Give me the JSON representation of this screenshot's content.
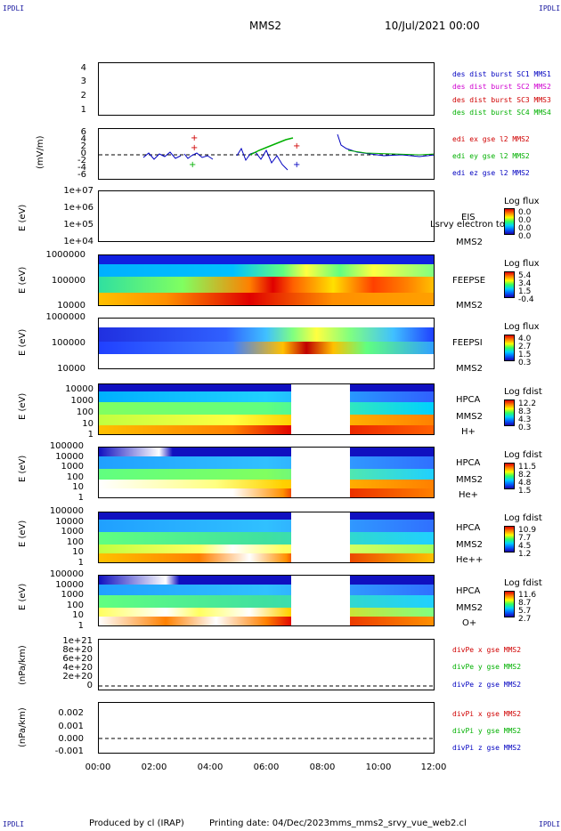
{
  "corners": {
    "tl": "IPDLI",
    "tr": "IPDLI",
    "bl": "IPDLI",
    "br": "IPDLI"
  },
  "header": {
    "mission": "MMS2",
    "date": "10/Jul/2021 00:00"
  },
  "panels": {
    "p1": {
      "ticks": [
        "4",
        "3",
        "2",
        "1"
      ],
      "legend": [
        "des dist burst SC1 MMS1",
        "des dist burst SC2 MMS2",
        "des dist burst SC3 MMS3",
        "des dist burst SC4 MMS4"
      ],
      "legend_colors": [
        "#0000c0",
        "#d000d0",
        "#d00000",
        "#00b000"
      ]
    },
    "p2": {
      "ylabel": "(mV/m)",
      "ticks": [
        "6",
        "4",
        "2",
        "0",
        "-2",
        "-4",
        "-6"
      ],
      "legend": [
        "edi ex gse l2 MMS2",
        "edi ey gse l2 MMS2",
        "edi ez gse l2 MMS2"
      ],
      "legend_colors": [
        "#d00000",
        "#00b000",
        "#0000c0"
      ]
    },
    "p3": {
      "ylabel": "E (eV)",
      "ticks": [
        "1e+07",
        "1e+06",
        "1e+05",
        "1e+04"
      ],
      "side": [
        "EIS",
        "MMS2"
      ],
      "overlap": "Lsrvy electron to",
      "cb_title": "Log flux",
      "cb_vals": [
        "0.0",
        "0.0",
        "0.0",
        "0.0"
      ]
    },
    "p4": {
      "ylabel": "E (eV)",
      "ticks": [
        "1000000",
        "100000",
        "10000"
      ],
      "side": [
        "FEEPSE",
        "MMS2"
      ],
      "cb_title": "Log flux",
      "cb_vals": [
        "5.4",
        "3.4",
        "1.5",
        "-0.4"
      ]
    },
    "p5": {
      "ylabel": "E (eV)",
      "ticks": [
        "1000000",
        "100000",
        "10000"
      ],
      "side": [
        "FEEPSI",
        "MMS2"
      ],
      "cb_title": "Log flux",
      "cb_vals": [
        "4.0",
        "2.7",
        "1.5",
        "0.3"
      ]
    },
    "p6": {
      "ylabel": "E (eV)",
      "ticks": [
        "10000",
        "1000",
        "100",
        "10",
        "1"
      ],
      "side": [
        "HPCA",
        "MMS2",
        "H+"
      ],
      "cb_title": "Log fdist",
      "cb_vals": [
        "12.2",
        "8.3",
        "4.3",
        "0.3"
      ]
    },
    "p7": {
      "ylabel": "E (eV)",
      "ticks": [
        "100000",
        "10000",
        "1000",
        "100",
        "10",
        "1"
      ],
      "side": [
        "HPCA",
        "MMS2",
        "He+"
      ],
      "cb_title": "Log fdist",
      "cb_vals": [
        "11.5",
        "8.2",
        "4.8",
        "1.5"
      ]
    },
    "p8": {
      "ylabel": "E (eV)",
      "ticks": [
        "100000",
        "10000",
        "1000",
        "100",
        "10",
        "1"
      ],
      "side": [
        "HPCA",
        "MMS2",
        "He++"
      ],
      "cb_title": "Log fdist",
      "cb_vals": [
        "10.9",
        "7.7",
        "4.5",
        "1.2"
      ]
    },
    "p9": {
      "ylabel": "E (eV)",
      "ticks": [
        "100000",
        "10000",
        "1000",
        "100",
        "10",
        "1"
      ],
      "side": [
        "HPCA",
        "MMS2",
        "O+"
      ],
      "cb_title": "Log fdist",
      "cb_vals": [
        "11.6",
        "8.7",
        "5.7",
        "2.7"
      ]
    },
    "p10": {
      "ylabel": "(nPa/km)",
      "ticks": [
        "1e+21",
        "8e+20",
        "6e+20",
        "4e+20",
        "2e+20",
        "0"
      ],
      "legend": [
        "divPe x gse MMS2",
        "divPe y gse MMS2",
        "divPe z gse MMS2"
      ],
      "legend_colors": [
        "#d00000",
        "#00b000",
        "#0000c0"
      ]
    },
    "p11": {
      "ylabel": "(nPa/km)",
      "ticks": [
        "0.002",
        "0.001",
        "0.000",
        "-0.001"
      ],
      "legend": [
        "divPi x gse MMS2",
        "divPi y gse MMS2",
        "divPi z gse MMS2"
      ],
      "legend_colors": [
        "#d00000",
        "#00b000",
        "#0000c0"
      ]
    }
  },
  "xaxis": {
    "ticks": [
      "00:00",
      "02:00",
      "04:00",
      "06:00",
      "08:00",
      "10:00",
      "12:00"
    ]
  },
  "footer": {
    "produced": "Produced by cl (IRAP)",
    "printing": "Printing date: 04/Dec/2023",
    "file": "mms_mms2_srvy_vue_web2.cl"
  },
  "chart_data": {
    "type": "heatmap",
    "x_range": [
      "00:00",
      "12:00"
    ],
    "hpca_data_gap": [
      "07:00",
      "09:00"
    ],
    "series": [
      {
        "name": "edi ex gse l2 MMS2",
        "color": "#d00000"
      },
      {
        "name": "edi ey gse l2 MMS2",
        "color": "#00b000"
      },
      {
        "name": "edi ez gse l2 MMS2",
        "color": "#0000c0"
      }
    ]
  }
}
